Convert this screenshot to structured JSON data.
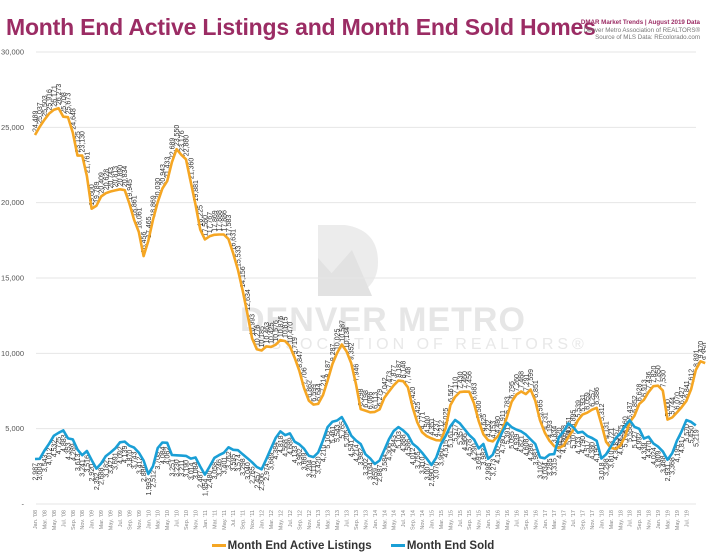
{
  "header": {
    "title": "Month End Active Listings and Month End Sold Homes",
    "credit_line1": "DMAR Market Trends | August 2019 Data",
    "credit_line2": "Denver Metro Association of REALTORS®",
    "credit_line3": "Source of MLS Data: REcolorado.com"
  },
  "watermark": {
    "line1": "DENVER METRO",
    "line2": "ASSOCIATION OF REALTORS®"
  },
  "colors": {
    "active": "#f5a623",
    "sold": "#1a9fd6",
    "title": "#9b2c64",
    "grid": "#e6e6e6"
  },
  "chart_data": {
    "type": "line",
    "title": "Month End Active Listings and Month End Sold Homes",
    "xlabel": "",
    "ylabel": "",
    "ylim": [
      0,
      30000
    ],
    "yticks": [
      0,
      5000,
      10000,
      15000,
      20000,
      25000,
      30000
    ],
    "ytick_labels": [
      "-",
      "5,000",
      "10,000",
      "15,000",
      "20,000",
      "25,000",
      "30,000"
    ],
    "grid": true,
    "legend_position": "bottom",
    "x_start": "Jan. '08",
    "x_end": "Aug. '19",
    "x_tick_labels": [
      "Jan. '08",
      "Mar. '08",
      "May. '08",
      "Jul. '08",
      "Sep. '08",
      "Nov. '08",
      "Jan. '09",
      "Mar. '09",
      "May. '09",
      "Jul. '09",
      "Sep. '09",
      "Nov. '09",
      "Jan. '10",
      "Mar. '10",
      "May. '10",
      "Jul. '10",
      "Sep. '10",
      "Nov. '10",
      "Jan. '11",
      "Mar. '11",
      "May. '11",
      "Jul. '11",
      "Sep. '11",
      "Nov. '11",
      "Jan. '12",
      "Mar. '12",
      "May. '12",
      "Jul. '12",
      "Sep. '12",
      "Nov. '12",
      "Jan. '13",
      "Mar. '13",
      "May. '13",
      "Jul. '13",
      "Sep. '13",
      "Nov. '13",
      "Jan. '14",
      "Mar. '14",
      "May. '14",
      "Jul. '14",
      "Sep. '14",
      "Nov. '14",
      "Jan. '15",
      "Mar. '15",
      "May. '15",
      "Jul. '15",
      "Sep. '15",
      "Nov. '15",
      "Jan. '16",
      "Mar. '16",
      "May. '16",
      "Jul. '16",
      "Sep. '16",
      "Nov. '16",
      "Jan. '17",
      "Mar. '17",
      "May. '17",
      "Jul. '17",
      "Sep. '17",
      "Nov. '17",
      "Jan. '18",
      "Mar. '18",
      "May. '18",
      "Jul. '18",
      "Sep. '18",
      "Nov. '18",
      "Jan. '19",
      "Mar. '19",
      "May. '19",
      "Jul. '19"
    ],
    "series": [
      {
        "name": "Month End Active Listings",
        "color": "#f5a623",
        "values": [
          24489,
          25037,
          25503,
          25916,
          26171,
          26273,
          25708,
          25673,
          24648,
          23125,
          23130,
          21761,
          19600,
          19789,
          20409,
          20628,
          20743,
          20813,
          20890,
          20834,
          19945,
          18861,
          18061,
          16456,
          17465,
          18869,
          20030,
          20943,
          21433,
          22689,
          23550,
          23176,
          22880,
          21360,
          19881,
          18225,
          17560,
          17767,
          17869,
          17888,
          17886,
          17583,
          16631,
          15533,
          14156,
          12634,
          10993,
          10276,
          10185,
          10463,
          10425,
          10576,
          10876,
          10815,
          10470,
          9719,
          8847,
          7706,
          6862,
          6599,
          6644,
          7214,
          8187,
          9287,
          10025,
          10587,
          10134,
          9352,
          7946,
          6298,
          6198,
          6086,
          6113,
          6279,
          7042,
          7473,
          7877,
          8187,
          8148,
          7748,
          6420,
          5425,
          4771,
          4500,
          4351,
          4237,
          4212,
          5025,
          6567,
          7110,
          7430,
          7460,
          7456,
          6683,
          5500,
          4625,
          4232,
          4153,
          4480,
          4911,
          5783,
          6795,
          7260,
          7468,
          7291,
          7599,
          6851,
          5565,
          4731,
          4193,
          3834,
          3720,
          3878,
          4451,
          4895,
          5539,
          5931,
          6059,
          6257,
          6386,
          5312,
          4131,
          3721,
          3657,
          3875,
          4460,
          5437,
          5852,
          6628,
          6913,
          7436,
          7820,
          7850,
          7530,
          5600,
          5744,
          6070,
          6427,
          6841,
          7612,
          8891,
          9470,
          9350
        ],
        "last_label": "9,350"
      },
      {
        "name": "Month End  Sold",
        "color": "#1a9fd6",
        "values": [
          2987,
          3003,
          3543,
          4012,
          4532,
          4725,
          4883,
          4353,
          4289,
          3613,
          3241,
          3516,
          2920,
          2352,
          2688,
          3182,
          3421,
          3691,
          4092,
          4139,
          3870,
          3743,
          3412,
          2886,
          1993,
          2512,
          3708,
          4084,
          4062,
          3251,
          3230,
          3211,
          3190,
          3014,
          3084,
          2487,
          1954,
          2480,
          3058,
          3246,
          3401,
          3762,
          3595,
          3574,
          3298,
          3040,
          2765,
          2457,
          2306,
          2974,
          3689,
          4384,
          4818,
          4568,
          4689,
          4133,
          3962,
          3669,
          3204,
          3110,
          3420,
          4210,
          5105,
          5461,
          5543,
          5765,
          5205,
          4541,
          4214,
          3982,
          3302,
          3034,
          2659,
          2887,
          3584,
          4306,
          4843,
          5103,
          4888,
          4586,
          4012,
          3755,
          3410,
          3007,
          2590,
          3070,
          3960,
          4515,
          5161,
          5577,
          5357,
          4966,
          4578,
          4290,
          3691,
          3983,
          2998,
          3273,
          4100,
          4780,
          5391,
          5095,
          4939,
          4821,
          4608,
          4286,
          3981,
          3102,
          3034,
          3285,
          3315,
          4436,
          4816,
          5350,
          5107,
          4733,
          4790,
          4517,
          4380,
          4190,
          3018,
          3298,
          3810,
          4351,
          4686,
          5176,
          5556,
          5127,
          4992,
          4339,
          4470,
          4024,
          3809,
          3488,
          2931,
          3368,
          4195,
          4817,
          5570,
          5450,
          5219
        ],
        "last_label": "5,219"
      }
    ],
    "label_samples": {
      "active_peak": "26,273",
      "active_first": "24,489",
      "sold_first": "2,987",
      "active_last": "9,350",
      "sold_last": "5,219"
    }
  },
  "legend": {
    "active_label": "Month End Active Listings",
    "sold_label": "Month End  Sold"
  }
}
